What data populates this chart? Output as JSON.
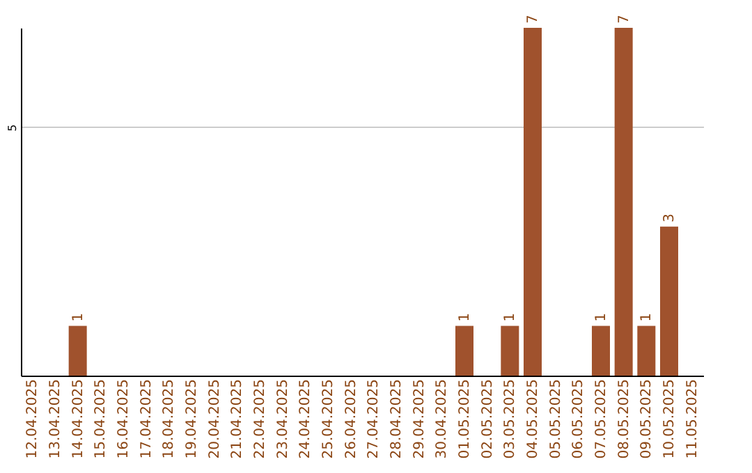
{
  "chart_data": {
    "type": "bar",
    "categories": [
      "12.04.2025",
      "13.04.2025",
      "14.04.2025",
      "15.04.2025",
      "16.04.2025",
      "17.04.2025",
      "18.04.2025",
      "19.04.2025",
      "20.04.2025",
      "21.04.2025",
      "22.04.2025",
      "23.04.2025",
      "24.04.2025",
      "25.04.2025",
      "26.04.2025",
      "27.04.2025",
      "28.04.2025",
      "29.04.2025",
      "30.04.2025",
      "01.05.2025",
      "02.05.2025",
      "03.05.2025",
      "04.05.2025",
      "05.05.2025",
      "06.05.2025",
      "07.05.2025",
      "08.05.2025",
      "09.05.2025",
      "10.05.2025",
      "11.05.2025"
    ],
    "values": [
      0,
      0,
      1,
      0,
      0,
      0,
      0,
      0,
      0,
      0,
      0,
      0,
      0,
      0,
      0,
      0,
      0,
      0,
      0,
      1,
      0,
      1,
      7,
      0,
      0,
      1,
      7,
      1,
      3,
      0
    ],
    "value_labels": [
      null,
      null,
      "1",
      null,
      null,
      null,
      null,
      null,
      null,
      null,
      null,
      null,
      null,
      null,
      null,
      null,
      null,
      null,
      null,
      "1",
      null,
      "1",
      "7",
      null,
      null,
      "1",
      "7",
      "1",
      "3",
      null
    ],
    "color": "#a0522d",
    "ylim": [
      0,
      7
    ],
    "yticks": [
      5
    ],
    "grid": "y"
  }
}
